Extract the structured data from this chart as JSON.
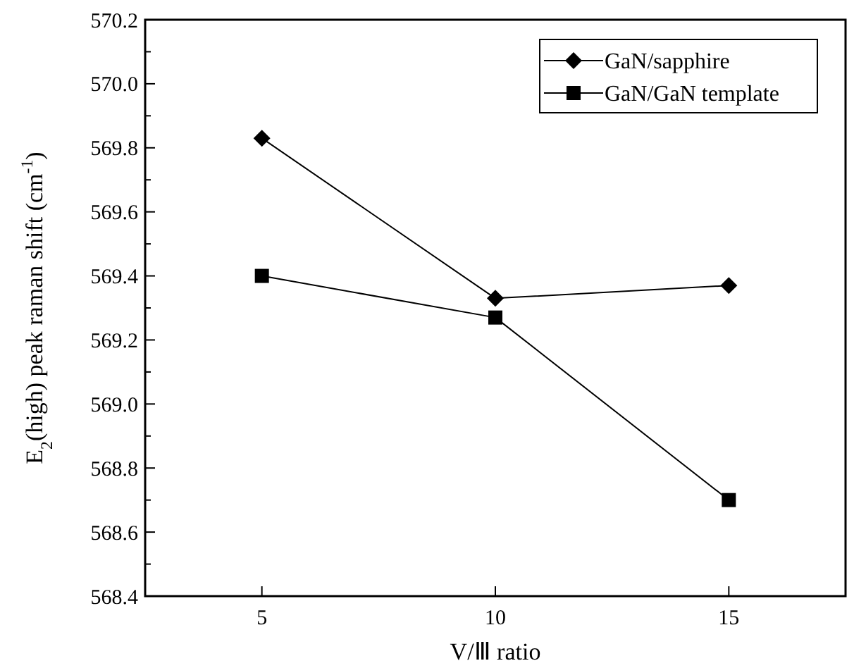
{
  "chart_data": {
    "type": "line",
    "xlabel": "V/Ⅲ ratio",
    "ylabel": "E$_{2}$(high) peak raman shift (cm$^{-1}$)",
    "x": [
      5,
      10,
      15
    ],
    "series": [
      {
        "name": "GaN/sapphire",
        "color": "#000000",
        "marker": "diamond",
        "values": [
          569.83,
          569.33,
          569.37
        ]
      },
      {
        "name": "GaN/GaN template",
        "color": "#000000",
        "marker": "square",
        "values": [
          569.4,
          569.27,
          568.7
        ]
      }
    ],
    "xlim": [
      2.5,
      17.5
    ],
    "xticks": [
      5,
      10,
      15
    ],
    "ylim": [
      568.4,
      570.2
    ],
    "yticks": [
      {
        "value": 568.4,
        "label": "568.4"
      },
      {
        "value": 568.5,
        "label": null
      },
      {
        "value": 568.6,
        "label": "568.6"
      },
      {
        "value": 568.7,
        "label": null
      },
      {
        "value": 568.8,
        "label": "568.8"
      },
      {
        "value": 568.9,
        "label": null
      },
      {
        "value": 569.0,
        "label": "569.0"
      },
      {
        "value": 569.1,
        "label": null
      },
      {
        "value": 569.2,
        "label": "569.2"
      },
      {
        "value": 569.3,
        "label": null
      },
      {
        "value": 569.4,
        "label": "569.4"
      },
      {
        "value": 569.5,
        "label": null
      },
      {
        "value": 569.6,
        "label": "569.6"
      },
      {
        "value": 569.7,
        "label": null
      },
      {
        "value": 569.8,
        "label": "569.8"
      },
      {
        "value": 569.9,
        "label": null
      },
      {
        "value": 570.0,
        "label": "570.0"
      },
      {
        "value": 570.1,
        "label": null
      },
      {
        "value": 570.2,
        "label": "570.2"
      }
    ],
    "legend": "top right",
    "line_style": "solid",
    "grid": false
  }
}
